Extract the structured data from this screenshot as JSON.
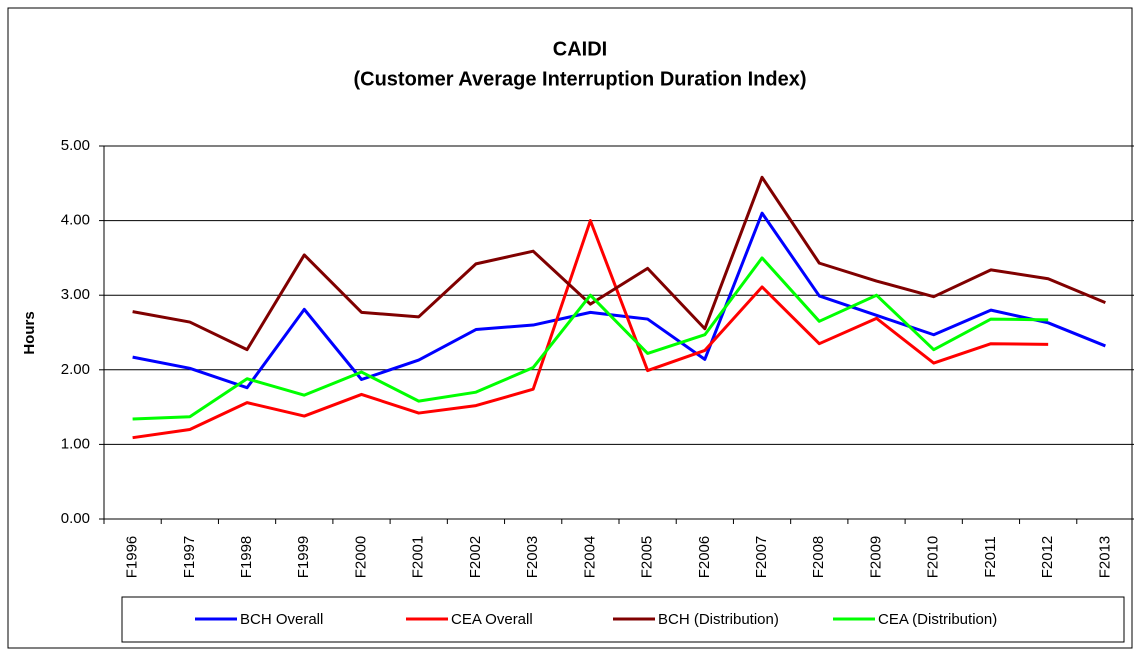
{
  "chart_data": {
    "type": "line",
    "title": "CAIDI",
    "subtitle": "(Customer Average Interruption Duration Index)",
    "y_label": "Hours",
    "categories": [
      "F1996",
      "F1997",
      "F1998",
      "F1999",
      "F2000",
      "F2001",
      "F2002",
      "F2003",
      "F2004",
      "F2005",
      "F2006",
      "F2007",
      "F2008",
      "F2009",
      "F2010",
      "F2011",
      "F2012",
      "F2013"
    ],
    "series": [
      {
        "name": "BCH Overall",
        "color": "#0000ff",
        "values": [
          2.17,
          2.02,
          1.76,
          2.81,
          1.87,
          2.13,
          2.54,
          2.6,
          2.77,
          2.68,
          2.14,
          4.1,
          2.99,
          2.73,
          2.47,
          2.8,
          2.63,
          2.32
        ]
      },
      {
        "name": "CEA Overall",
        "color": "#ff0000",
        "values": [
          1.09,
          1.2,
          1.56,
          1.38,
          1.67,
          1.42,
          1.52,
          1.74,
          4.0,
          1.99,
          2.26,
          3.11,
          2.35,
          2.69,
          2.09,
          2.35,
          2.34,
          null
        ]
      },
      {
        "name": "BCH (Distribution)",
        "color": "#800000",
        "values": [
          2.78,
          2.64,
          2.27,
          3.54,
          2.77,
          2.71,
          3.42,
          3.59,
          2.88,
          3.36,
          2.55,
          4.58,
          3.43,
          3.19,
          2.98,
          3.34,
          3.22,
          2.9
        ]
      },
      {
        "name": "CEA (Distribution)",
        "color": "#00ff00",
        "values": [
          1.34,
          1.37,
          1.88,
          1.66,
          1.97,
          1.58,
          1.7,
          2.03,
          3.0,
          2.22,
          2.47,
          3.5,
          2.65,
          3.0,
          2.27,
          2.68,
          2.67,
          null
        ]
      }
    ],
    "ylim": [
      0,
      5
    ],
    "yticks": [
      {
        "value": 0,
        "label": "0.00"
      },
      {
        "value": 1,
        "label": "1.00"
      },
      {
        "value": 2,
        "label": "2.00"
      },
      {
        "value": 3,
        "label": "3.00"
      },
      {
        "value": 4,
        "label": "4.00"
      },
      {
        "value": 5,
        "label": "5.00"
      }
    ],
    "grid": true,
    "legend": "bottom"
  }
}
